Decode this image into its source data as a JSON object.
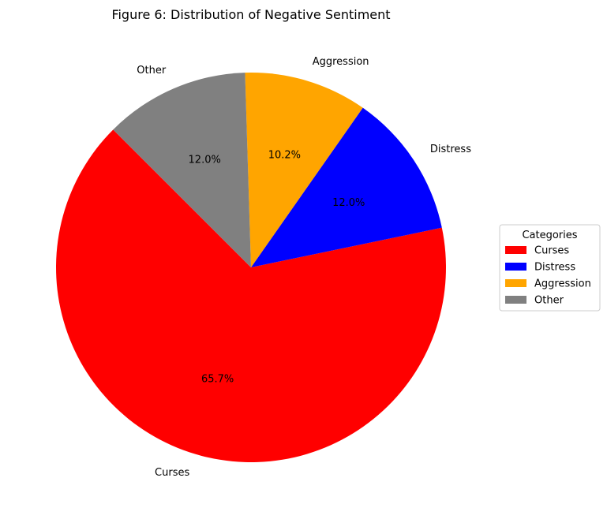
{
  "chart_data": {
    "type": "pie",
    "title": "Figure 6: Distribution of Negative Sentiment",
    "legend": {
      "title": "Categories",
      "placement": "center-right"
    },
    "start_angle_deg": 135,
    "direction": "counterclockwise",
    "slices": [
      {
        "label": "Curses",
        "value": 65.7,
        "pct_label": "65.7%",
        "color": "#ff0000"
      },
      {
        "label": "Distress",
        "value": 12.0,
        "pct_label": "12.0%",
        "color": "#0000ff"
      },
      {
        "label": "Aggression",
        "value": 10.2,
        "pct_label": "10.2%",
        "color": "#ffa500"
      },
      {
        "label": "Other",
        "value": 12.0,
        "pct_label": "12.0%",
        "color": "#808080"
      }
    ]
  }
}
